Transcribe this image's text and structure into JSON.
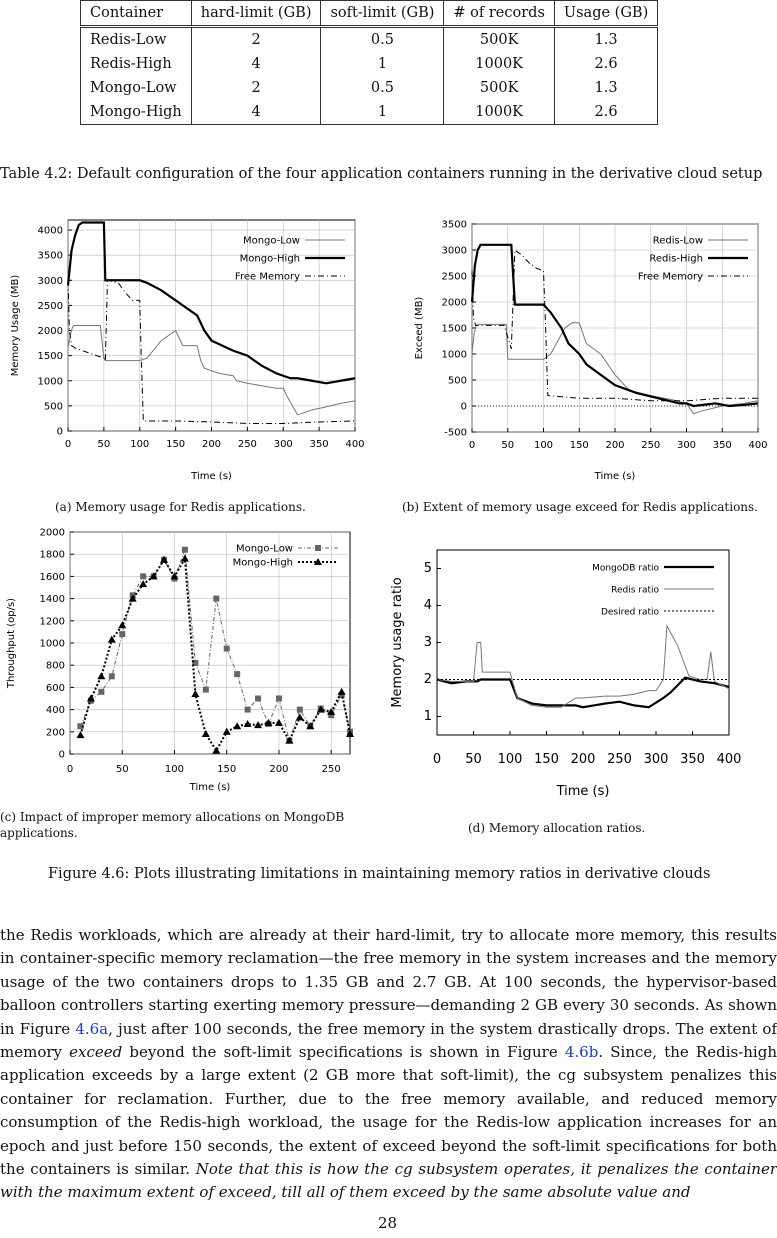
{
  "table": {
    "headers": [
      "Container",
      "hard-limit (GB)",
      "soft-limit (GB)",
      "# of records",
      "Usage (GB)"
    ],
    "rows": [
      [
        "Redis-Low",
        "2",
        "0.5",
        "500K",
        "1.3"
      ],
      [
        "Redis-High",
        "4",
        "1",
        "1000K",
        "2.6"
      ],
      [
        "Mongo-Low",
        "2",
        "0.5",
        "500K",
        "1.3"
      ],
      [
        "Mongo-High",
        "4",
        "1",
        "1000K",
        "2.6"
      ]
    ],
    "caption": "Table 4.2: Default configuration of the four application containers running in the derivative cloud setup"
  },
  "figure_caption": "Figure 4.6: Plots illustrating limitations in maintaining memory ratios in derivative clouds",
  "subcaptions": {
    "a": "(a) Memory usage for Redis applications.",
    "b": "(b) Extent of memory usage exceed for Redis applications.",
    "c1": "(c) Impact of improper memory allocations on MongoDB",
    "c2": "applications.",
    "d": "(d) Memory allocation ratios."
  },
  "chart_data": [
    {
      "type": "line",
      "xlabel": "Time (s)",
      "ylabel": "Memory Usage (MB)",
      "xlim": [
        0,
        400
      ],
      "ylim": [
        0,
        4200
      ],
      "xticks": [
        0,
        50,
        100,
        150,
        200,
        250,
        300,
        350,
        400
      ],
      "yticks": [
        0,
        500,
        1000,
        1500,
        2000,
        2500,
        3000,
        3500,
        4000
      ],
      "grid": true,
      "legend": "top-right",
      "series": [
        {
          "name": "Mongo-Low",
          "style": "thin",
          "x": [
            0,
            2,
            4,
            6,
            8,
            45,
            50,
            52,
            100,
            110,
            130,
            150,
            160,
            180,
            185,
            190,
            200,
            210,
            230,
            235,
            250,
            270,
            290,
            300,
            305,
            320,
            340,
            360,
            380,
            400
          ],
          "y": [
            1650,
            1800,
            1950,
            2050,
            2100,
            2100,
            1450,
            1400,
            1400,
            1450,
            1800,
            2000,
            1700,
            1700,
            1400,
            1250,
            1200,
            1150,
            1100,
            1000,
            950,
            900,
            850,
            850,
            700,
            320,
            420,
            480,
            550,
            600
          ]
        },
        {
          "name": "Mongo-High",
          "style": "thick",
          "x": [
            0,
            5,
            10,
            15,
            20,
            50,
            52,
            100,
            110,
            130,
            150,
            160,
            180,
            190,
            200,
            230,
            250,
            270,
            290,
            300,
            310,
            320,
            340,
            360,
            380,
            400
          ],
          "y": [
            2900,
            3600,
            3900,
            4100,
            4150,
            4150,
            3000,
            3000,
            2950,
            2800,
            2600,
            2500,
            2300,
            2000,
            1800,
            1600,
            1500,
            1300,
            1150,
            1100,
            1050,
            1050,
            1000,
            950,
            1000,
            1050
          ]
        },
        {
          "name": "Free Memory",
          "style": "dashdot",
          "x": [
            0,
            2,
            5,
            10,
            20,
            50,
            52,
            55,
            70,
            80,
            90,
            100,
            102,
            105,
            150,
            200,
            250,
            300,
            350,
            400
          ],
          "y": [
            3000,
            2000,
            1700,
            1650,
            1600,
            1450,
            1400,
            3000,
            2950,
            2750,
            2600,
            2600,
            1500,
            200,
            200,
            180,
            150,
            150,
            180,
            200
          ]
        }
      ]
    },
    {
      "type": "line",
      "xlabel": "Time (s)",
      "ylabel": "Exceed (MB)",
      "xlim": [
        0,
        400
      ],
      "ylim": [
        -500,
        3500
      ],
      "xticks": [
        0,
        50,
        100,
        150,
        200,
        250,
        300,
        350,
        400
      ],
      "yticks": [
        -500,
        0,
        500,
        1000,
        1500,
        2000,
        2500,
        3000,
        3500
      ],
      "grid": true,
      "legend": "top-right",
      "series": [
        {
          "name": "Redis-Low",
          "style": "thin",
          "x": [
            0,
            3,
            6,
            10,
            48,
            50,
            100,
            110,
            130,
            140,
            150,
            160,
            180,
            200,
            220,
            250,
            280,
            300,
            310,
            320,
            350,
            380,
            400
          ],
          "y": [
            1000,
            1400,
            1550,
            1570,
            1570,
            900,
            900,
            1000,
            1500,
            1600,
            1600,
            1200,
            1000,
            600,
            300,
            200,
            120,
            50,
            -150,
            -100,
            0,
            50,
            100
          ]
        },
        {
          "name": "Redis-High",
          "style": "thick",
          "x": [
            0,
            4,
            8,
            12,
            55,
            60,
            100,
            110,
            125,
            135,
            150,
            160,
            180,
            200,
            230,
            260,
            290,
            300,
            310,
            340,
            360,
            380,
            400
          ],
          "y": [
            2000,
            2700,
            3000,
            3100,
            3100,
            1950,
            1950,
            1800,
            1500,
            1200,
            1000,
            800,
            600,
            400,
            250,
            150,
            50,
            50,
            0,
            50,
            0,
            20,
            50
          ]
        },
        {
          "name": "Free Memory",
          "style": "dashdot",
          "x": [
            0,
            2,
            5,
            10,
            20,
            45,
            55,
            60,
            70,
            80,
            90,
            100,
            103,
            106,
            150,
            200,
            250,
            300,
            350,
            400
          ],
          "y": [
            2600,
            1700,
            1550,
            1550,
            1550,
            1550,
            1100,
            3000,
            2900,
            2750,
            2650,
            2600,
            1500,
            200,
            150,
            150,
            100,
            100,
            150,
            150
          ]
        }
      ]
    },
    {
      "type": "line",
      "xlabel": "Time (s)",
      "ylabel": "Throughput (op/s)",
      "xlim": [
        0,
        268
      ],
      "ylim": [
        0,
        2000
      ],
      "xticks": [
        0,
        50,
        100,
        150,
        200,
        250
      ],
      "yticks": [
        0,
        200,
        400,
        600,
        800,
        1000,
        1200,
        1400,
        1600,
        1800,
        2000
      ],
      "grid": true,
      "legend": "top-right",
      "series": [
        {
          "name": "Mongo-Low",
          "marker": "square",
          "x": [
            10,
            20,
            30,
            40,
            50,
            60,
            70,
            80,
            90,
            100,
            110,
            120,
            130,
            140,
            150,
            160,
            170,
            180,
            190,
            200,
            210,
            220,
            230,
            240,
            250,
            260,
            268
          ],
          "y": [
            250,
            480,
            560,
            700,
            1080,
            1430,
            1600,
            1600,
            1750,
            1580,
            1840,
            820,
            580,
            1400,
            950,
            720,
            400,
            500,
            270,
            500,
            120,
            400,
            250,
            410,
            350,
            530,
            200
          ]
        },
        {
          "name": "Mongo-High",
          "marker": "triangle",
          "x": [
            10,
            20,
            30,
            40,
            50,
            60,
            70,
            80,
            90,
            100,
            110,
            120,
            130,
            140,
            150,
            160,
            170,
            180,
            190,
            200,
            210,
            220,
            230,
            240,
            250,
            260,
            268
          ],
          "y": [
            170,
            500,
            700,
            1030,
            1160,
            1400,
            1530,
            1600,
            1750,
            1600,
            1760,
            540,
            180,
            30,
            200,
            250,
            270,
            260,
            280,
            280,
            120,
            330,
            250,
            400,
            380,
            560,
            180
          ]
        }
      ]
    },
    {
      "type": "line",
      "xlabel": "Time (s)",
      "ylabel": "Memory usage ratio",
      "xlim": [
        0,
        400
      ],
      "ylim": [
        0.5,
        5.5
      ],
      "xticks": [
        0,
        50,
        100,
        150,
        200,
        250,
        300,
        350,
        400
      ],
      "yticks": [
        1,
        2,
        3,
        4,
        5
      ],
      "grid": false,
      "legend": "top-right",
      "series": [
        {
          "name": "MongoDB ratio",
          "style": "thick",
          "x": [
            0,
            20,
            40,
            55,
            60,
            100,
            110,
            130,
            150,
            170,
            190,
            200,
            230,
            250,
            270,
            290,
            310,
            320,
            340,
            360,
            380,
            400
          ],
          "y": [
            2.0,
            1.9,
            1.95,
            1.95,
            2.0,
            2.0,
            1.5,
            1.35,
            1.3,
            1.3,
            1.3,
            1.25,
            1.35,
            1.4,
            1.3,
            1.25,
            1.5,
            1.65,
            2.05,
            1.95,
            1.9,
            1.8
          ]
        },
        {
          "name": "Redis ratio",
          "style": "thin",
          "x": [
            0,
            20,
            50,
            55,
            60,
            62,
            100,
            110,
            130,
            150,
            170,
            190,
            200,
            230,
            250,
            270,
            290,
            300,
            310,
            315,
            330,
            345,
            360,
            370,
            375,
            380,
            400
          ],
          "y": [
            2.0,
            1.95,
            1.95,
            3.0,
            3.0,
            2.2,
            2.2,
            1.5,
            1.3,
            1.25,
            1.25,
            1.5,
            1.5,
            1.55,
            1.55,
            1.6,
            1.7,
            1.7,
            2.0,
            3.45,
            2.9,
            2.1,
            2.0,
            2.0,
            2.75,
            1.95,
            1.75
          ]
        },
        {
          "name": "Desired ratio",
          "style": "dotted",
          "x": [
            0,
            400
          ],
          "y": [
            2,
            2
          ]
        }
      ]
    }
  ],
  "paragraph": [
    {
      "t": "the Redis workloads, which are already at their hard-limit, try to allocate more memory, this results in container-specific memory reclamation—the free memory in the system increases and the memory usage of the two containers drops to 1.35 GB and 2.7 GB. At 100 seconds, the hypervisor-based balloon controllers starting exerting memory pressure—demanding 2 GB every 30 seconds. As shown in Figure "
    },
    {
      "ref": "4.6a"
    },
    {
      "t": ", just after 100 seconds, the free memory in the system drastically drops. The extent of memory "
    },
    {
      "i": "exceed"
    },
    {
      "t": " beyond the soft-limit specifications is shown in Figure "
    },
    {
      "ref": "4.6b"
    },
    {
      "t": ". Since, the Redis-high application exceeds by a large extent (2 GB more that soft-limit), the cg subsystem penalizes this container for reclamation. Further, due to the free memory available, and reduced memory consumption of the Redis-high workload, the usage for the Redis-low application increases for an epoch and just before 150 seconds, the extent of exceed beyond the soft-limit specifications for both the containers is similar. "
    },
    {
      "i": "Note that this is how the cg subsystem operates, it penalizes the container with the maximum extent of exceed, till all of them exceed by the same absolute value and"
    }
  ],
  "page_number": "28"
}
